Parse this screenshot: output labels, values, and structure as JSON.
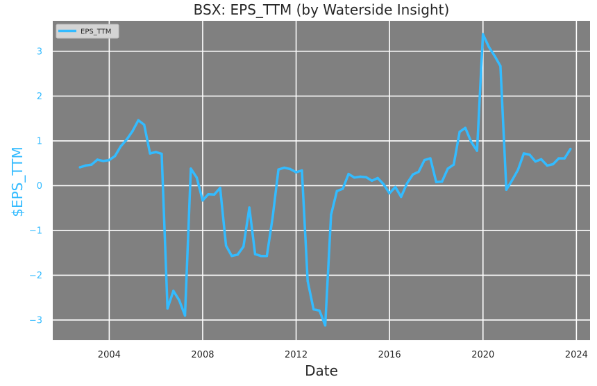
{
  "chart_data": {
    "type": "line",
    "title": "BSX: EPS_TTM (by Waterside Insight)",
    "xlabel": "Date",
    "ylabel": "$EPS_TTM",
    "xlim": [
      "2001-08-01",
      "2024-08-01"
    ],
    "ylim": [
      -3.45,
      3.68
    ],
    "x_ticks": [
      "2004",
      "2008",
      "2012",
      "2016",
      "2020",
      "2024"
    ],
    "y_ticks": [
      -3,
      -2,
      -1,
      0,
      1,
      2,
      3
    ],
    "grid": true,
    "legend_position": "top-left",
    "colors": {
      "line": "#33bbff",
      "background": "#808080",
      "grid": "#ffffff",
      "ytick": "#33bbff"
    },
    "series": [
      {
        "name": "EPS_TTM",
        "points": [
          [
            "2002-09-30",
            0.41
          ],
          [
            "2002-12-31",
            0.45
          ],
          [
            "2003-03-31",
            0.47
          ],
          [
            "2003-06-30",
            0.58
          ],
          [
            "2003-09-30",
            0.55
          ],
          [
            "2003-12-31",
            0.57
          ],
          [
            "2004-03-31",
            0.66
          ],
          [
            "2004-06-30",
            0.88
          ],
          [
            "2004-09-30",
            1.03
          ],
          [
            "2004-12-31",
            1.22
          ],
          [
            "2005-03-31",
            1.46
          ],
          [
            "2005-06-30",
            1.36
          ],
          [
            "2005-09-30",
            0.72
          ],
          [
            "2005-12-31",
            0.75
          ],
          [
            "2006-03-31",
            0.71
          ],
          [
            "2006-06-30",
            -2.74
          ],
          [
            "2006-09-30",
            -2.35
          ],
          [
            "2006-12-31",
            -2.56
          ],
          [
            "2007-03-31",
            -2.9
          ],
          [
            "2007-06-30",
            0.38
          ],
          [
            "2007-09-30",
            0.18
          ],
          [
            "2007-12-31",
            -0.33
          ],
          [
            "2008-03-31",
            -0.19
          ],
          [
            "2008-06-30",
            -0.2
          ],
          [
            "2008-09-30",
            -0.05
          ],
          [
            "2008-12-31",
            -1.34
          ],
          [
            "2009-03-31",
            -1.57
          ],
          [
            "2009-06-30",
            -1.54
          ],
          [
            "2009-09-30",
            -1.36
          ],
          [
            "2009-12-31",
            -0.49
          ],
          [
            "2010-03-31",
            -1.53
          ],
          [
            "2010-06-30",
            -1.57
          ],
          [
            "2010-09-30",
            -1.57
          ],
          [
            "2010-12-31",
            -0.7
          ],
          [
            "2011-03-31",
            0.36
          ],
          [
            "2011-06-30",
            0.4
          ],
          [
            "2011-09-30",
            0.37
          ],
          [
            "2011-12-31",
            0.3
          ],
          [
            "2012-03-31",
            0.34
          ],
          [
            "2012-06-30",
            -2.13
          ],
          [
            "2012-09-30",
            -2.76
          ],
          [
            "2012-12-31",
            -2.79
          ],
          [
            "2013-03-31",
            -3.12
          ],
          [
            "2013-06-30",
            -0.65
          ],
          [
            "2013-09-30",
            -0.12
          ],
          [
            "2013-12-31",
            -0.07
          ],
          [
            "2014-03-31",
            0.26
          ],
          [
            "2014-06-30",
            0.18
          ],
          [
            "2014-09-30",
            0.2
          ],
          [
            "2014-12-31",
            0.19
          ],
          [
            "2015-03-31",
            0.11
          ],
          [
            "2015-06-30",
            0.17
          ],
          [
            "2015-09-30",
            0.03
          ],
          [
            "2015-12-31",
            -0.17
          ],
          [
            "2016-03-31",
            -0.03
          ],
          [
            "2016-06-30",
            -0.25
          ],
          [
            "2016-09-30",
            0.05
          ],
          [
            "2016-12-31",
            0.25
          ],
          [
            "2017-03-31",
            0.31
          ],
          [
            "2017-06-30",
            0.57
          ],
          [
            "2017-09-30",
            0.61
          ],
          [
            "2017-12-31",
            0.08
          ],
          [
            "2018-03-31",
            0.09
          ],
          [
            "2018-06-30",
            0.38
          ],
          [
            "2018-09-30",
            0.47
          ],
          [
            "2018-12-31",
            1.2
          ],
          [
            "2019-03-31",
            1.29
          ],
          [
            "2019-06-30",
            0.98
          ],
          [
            "2019-09-30",
            0.78
          ],
          [
            "2019-12-31",
            3.38
          ],
          [
            "2020-03-31",
            3.1
          ],
          [
            "2020-06-30",
            2.9
          ],
          [
            "2020-09-30",
            2.67
          ],
          [
            "2020-12-31",
            -0.09
          ],
          [
            "2021-03-31",
            0.12
          ],
          [
            "2021-06-30",
            0.35
          ],
          [
            "2021-09-30",
            0.72
          ],
          [
            "2021-12-31",
            0.69
          ],
          [
            "2022-03-31",
            0.54
          ],
          [
            "2022-06-30",
            0.59
          ],
          [
            "2022-09-30",
            0.45
          ],
          [
            "2022-12-31",
            0.48
          ],
          [
            "2023-03-31",
            0.61
          ],
          [
            "2023-06-30",
            0.61
          ],
          [
            "2023-09-30",
            0.82
          ]
        ]
      }
    ]
  }
}
